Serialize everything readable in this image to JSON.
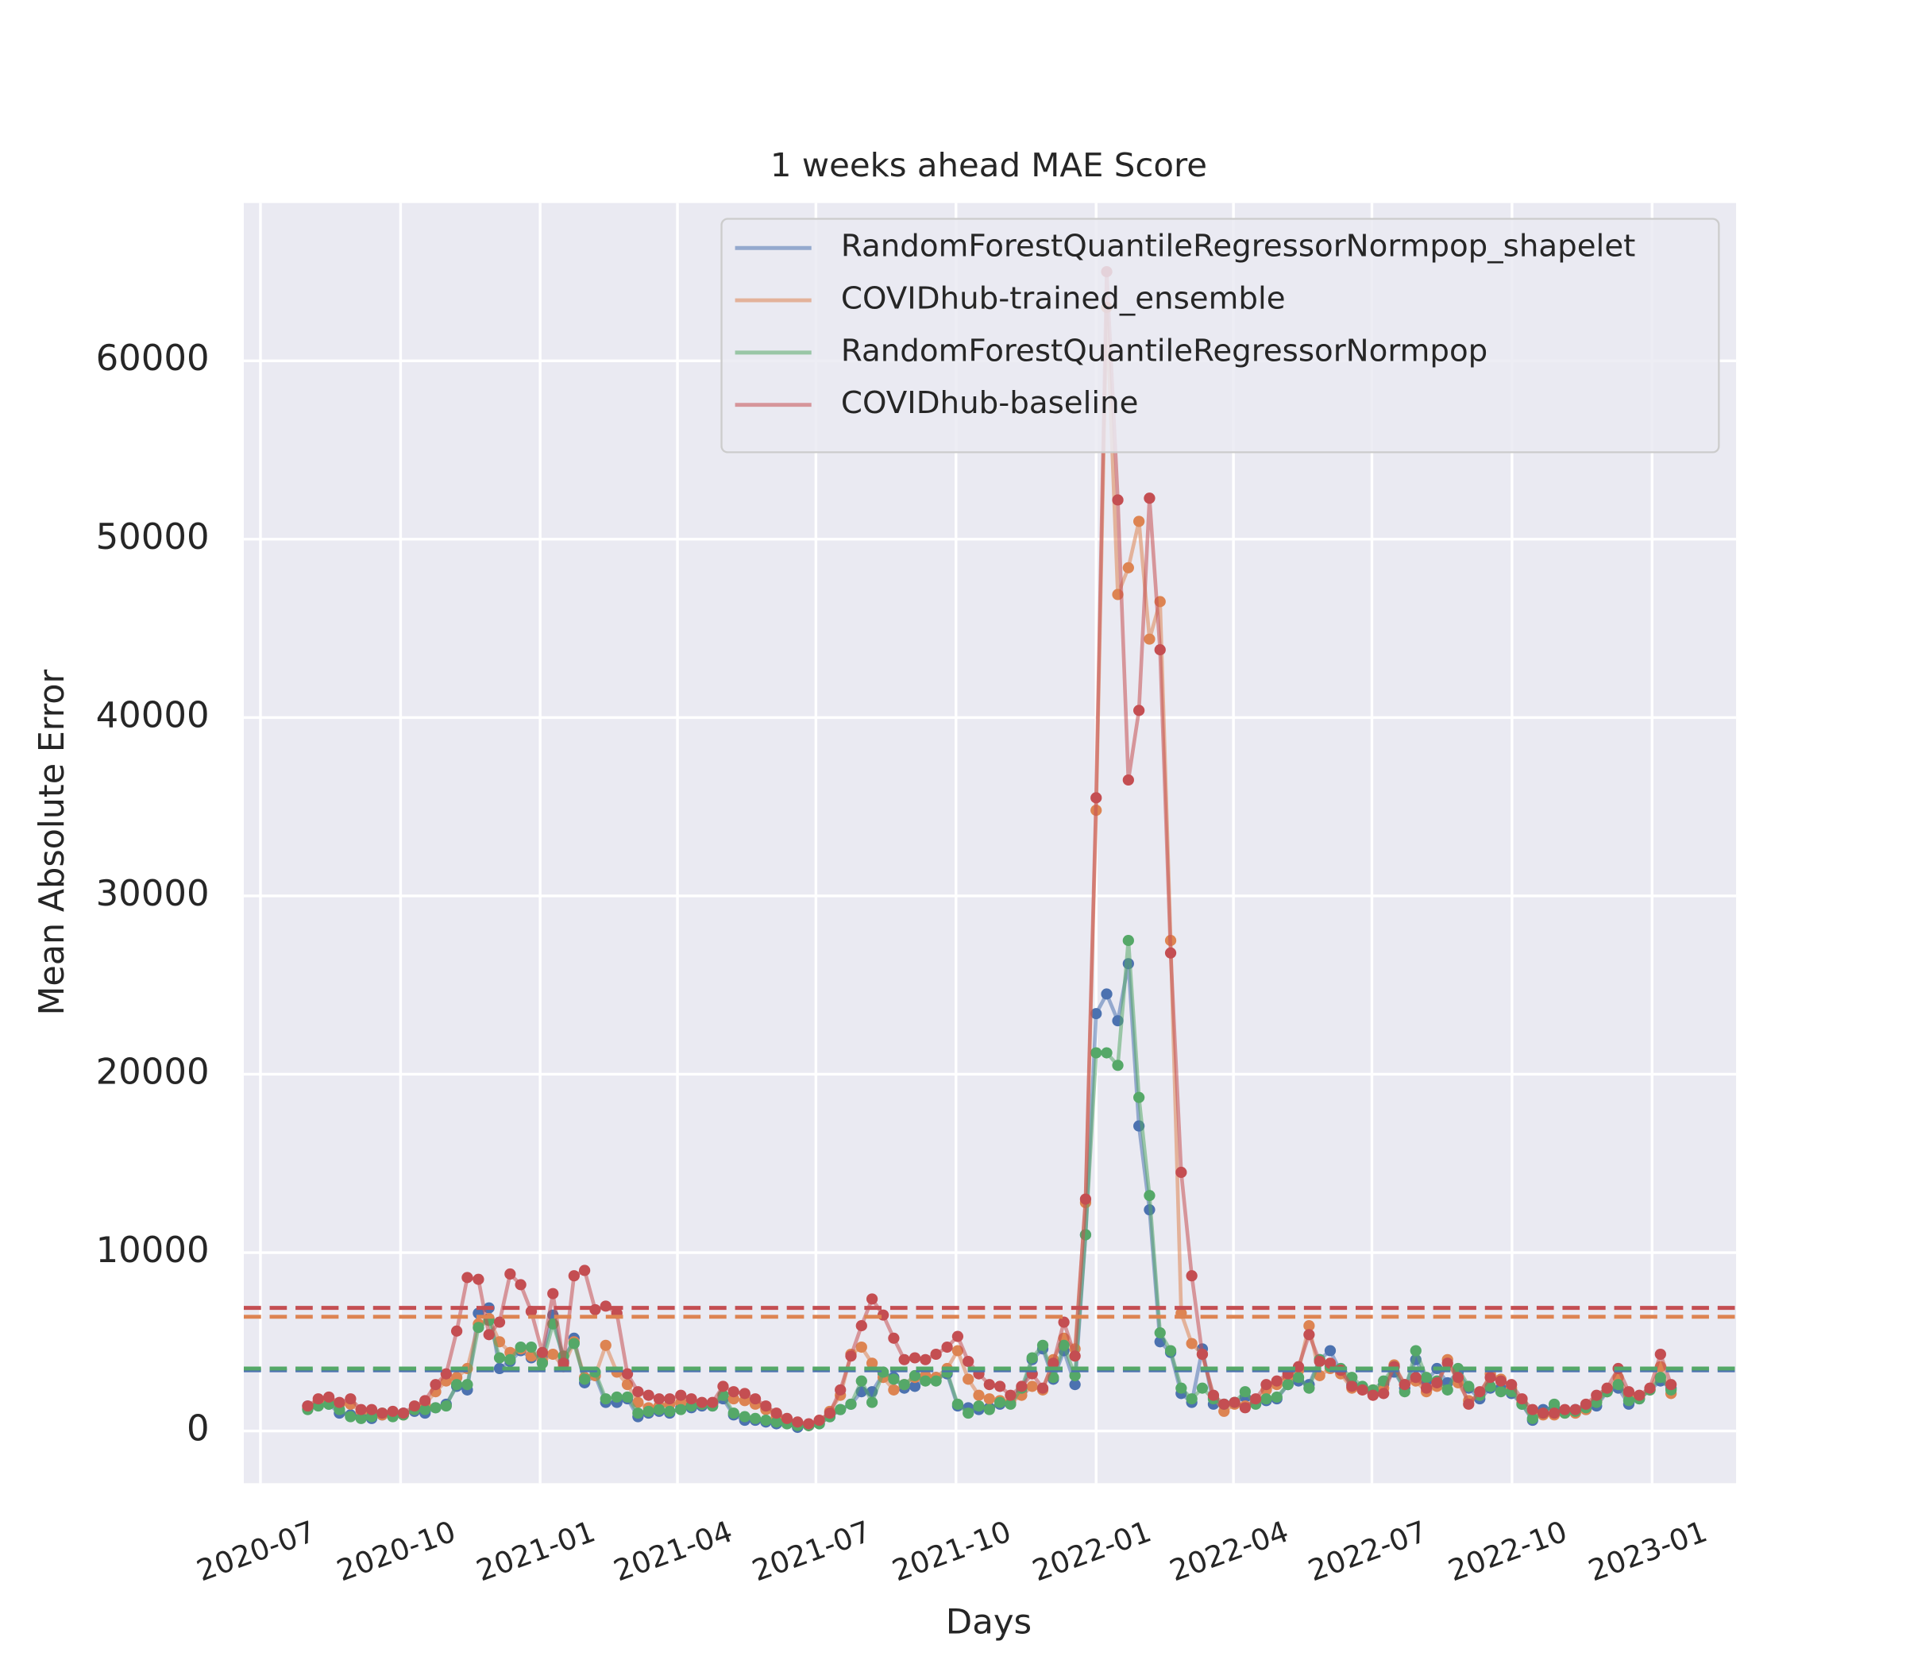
{
  "chart_data": {
    "type": "line",
    "title": "1 weeks ahead MAE Score",
    "xlabel": "Days",
    "ylabel": "Mean Absolute Error",
    "grid": true,
    "legend": "upper right",
    "xlim": [
      2020.467,
      2023.151
    ],
    "ylim": [
      -2930,
      68850
    ],
    "xticks": [
      {
        "value": 2020.497,
        "label": "2020-07"
      },
      {
        "value": 2020.749,
        "label": "2020-10"
      },
      {
        "value": 2021.0,
        "label": "2021-01"
      },
      {
        "value": 2021.247,
        "label": "2021-04"
      },
      {
        "value": 2021.496,
        "label": "2021-07"
      },
      {
        "value": 2021.748,
        "label": "2021-10"
      },
      {
        "value": 2022.0,
        "label": "2022-01"
      },
      {
        "value": 2022.247,
        "label": "2022-04"
      },
      {
        "value": 2022.496,
        "label": "2022-07"
      },
      {
        "value": 2022.748,
        "label": "2022-10"
      },
      {
        "value": 2023.0,
        "label": "2023-01"
      }
    ],
    "yticks": [
      0,
      10000,
      20000,
      30000,
      40000,
      50000,
      60000
    ],
    "x": [
      2020.582,
      2020.601,
      2020.62,
      2020.639,
      2020.659,
      2020.678,
      2020.697,
      2020.716,
      2020.735,
      2020.754,
      2020.774,
      2020.793,
      2020.812,
      2020.831,
      2020.85,
      2020.869,
      2020.889,
      2020.908,
      2020.927,
      2020.946,
      2020.965,
      2020.984,
      2021.004,
      2021.023,
      2021.042,
      2021.061,
      2021.08,
      2021.099,
      2021.118,
      2021.138,
      2021.157,
      2021.176,
      2021.195,
      2021.214,
      2021.233,
      2021.253,
      2021.272,
      2021.291,
      2021.31,
      2021.329,
      2021.348,
      2021.368,
      2021.387,
      2021.406,
      2021.425,
      2021.444,
      2021.463,
      2021.483,
      2021.502,
      2021.521,
      2021.54,
      2021.559,
      2021.578,
      2021.597,
      2021.617,
      2021.636,
      2021.655,
      2021.674,
      2021.693,
      2021.712,
      2021.732,
      2021.751,
      2021.77,
      2021.789,
      2021.808,
      2021.827,
      2021.846,
      2021.866,
      2021.885,
      2021.904,
      2021.923,
      2021.942,
      2021.962,
      2021.981,
      2022.0,
      2022.019,
      2022.039,
      2022.058,
      2022.077,
      2022.096,
      2022.115,
      2022.134,
      2022.153,
      2022.172,
      2022.191,
      2022.211,
      2022.23,
      2022.249,
      2022.268,
      2022.287,
      2022.306,
      2022.325,
      2022.345,
      2022.364,
      2022.383,
      2022.402,
      2022.421,
      2022.44,
      2022.46,
      2022.479,
      2022.498,
      2022.517,
      2022.536,
      2022.555,
      2022.575,
      2022.594,
      2022.613,
      2022.632,
      2022.651,
      2022.67,
      2022.69,
      2022.709,
      2022.728,
      2022.747,
      2022.766,
      2022.785,
      2022.804,
      2022.824,
      2022.843,
      2022.862,
      2022.881,
      2022.9,
      2022.919,
      2022.939,
      2022.958,
      2022.977,
      2022.996,
      2023.015,
      2023.034
    ],
    "series": [
      {
        "name": "RandomForestQuantileRegressorNormpop_shapelet",
        "color": "#4c72b0",
        "mean": 3400,
        "values": [
          1400,
          1500,
          1500,
          1000,
          900,
          800,
          700,
          900,
          900,
          1000,
          1100,
          1000,
          1300,
          1500,
          2500,
          2300,
          6600,
          6900,
          3500,
          3900,
          4500,
          4100,
          4200,
          6500,
          3900,
          5200,
          2700,
          3100,
          1600,
          1600,
          1800,
          800,
          1000,
          1100,
          1000,
          1300,
          1300,
          1400,
          1400,
          1800,
          900,
          600,
          600,
          500,
          400,
          400,
          200,
          300,
          400,
          800,
          1200,
          1500,
          2200,
          2200,
          3200,
          3000,
          2400,
          2500,
          2900,
          3000,
          3200,
          1400,
          1300,
          1200,
          1300,
          1500,
          1600,
          2200,
          4000,
          4600,
          2900,
          4500,
          2600,
          11000,
          23400,
          24500,
          23000,
          26200,
          17100,
          12400,
          5000,
          4400,
          2100,
          1600,
          4600,
          1500,
          1500,
          1600,
          1900,
          1600,
          1700,
          1800,
          2600,
          2800,
          2600,
          4000,
          4500,
          3300,
          2600,
          2400,
          2200,
          2600,
          3300,
          2400,
          4000,
          2800,
          3500,
          2700,
          3300,
          2400,
          1800,
          2400,
          2400,
          2100,
          1500,
          600,
          1200,
          1300,
          1100,
          1200,
          1200,
          1400,
          2200,
          2400,
          1500,
          1800,
          2300,
          2800,
          2400
        ]
      },
      {
        "name": "COVIDhub-trained_ensemble",
        "color": "#dd8452",
        "mean": 6400,
        "values": [
          1300,
          1600,
          1700,
          1500,
          1500,
          1100,
          1000,
          900,
          1000,
          900,
          1200,
          1500,
          2200,
          2800,
          3000,
          3500,
          6000,
          6300,
          5000,
          4400,
          4600,
          4200,
          3900,
          4300,
          3600,
          5000,
          3000,
          3100,
          4800,
          3300,
          2600,
          1600,
          1300,
          1400,
          1500,
          1600,
          1600,
          1500,
          1500,
          2000,
          1800,
          1700,
          1500,
          1200,
          800,
          600,
          400,
          300,
          500,
          1100,
          2000,
          4300,
          4700,
          3800,
          3000,
          2300,
          2600,
          3000,
          3100,
          3000,
          3500,
          4500,
          2900,
          2000,
          1800,
          1700,
          1600,
          2000,
          2500,
          2300,
          4000,
          5200,
          4600,
          12800,
          34800,
          63000,
          46900,
          48400,
          51000,
          44400,
          46500,
          27500,
          6600,
          4900,
          4300,
          1900,
          1100,
          1500,
          1400,
          1600,
          2300,
          2600,
          3000,
          3400,
          5900,
          3100,
          3500,
          3200,
          2400,
          2300,
          2300,
          2400,
          3700,
          2600,
          2800,
          2200,
          2500,
          4000,
          2700,
          1700,
          2000,
          3200,
          2900,
          2400,
          1600,
          1100,
          900,
          900,
          1000,
          1000,
          1200,
          1700,
          2200,
          3000,
          2000,
          1900,
          2300,
          3600,
          2100
        ]
      },
      {
        "name": "RandomForestQuantileRegressorNormpop",
        "color": "#55a868",
        "mean": 3500,
        "values": [
          1200,
          1400,
          1500,
          1200,
          800,
          700,
          800,
          1000,
          800,
          900,
          1200,
          1200,
          1300,
          1400,
          2600,
          2600,
          5800,
          6200,
          4100,
          4000,
          4700,
          4700,
          3800,
          6000,
          4200,
          4900,
          2900,
          3300,
          1800,
          1900,
          1900,
          1000,
          1100,
          1200,
          1100,
          1200,
          1400,
          1500,
          1400,
          2000,
          1000,
          800,
          700,
          600,
          500,
          400,
          300,
          300,
          400,
          800,
          1200,
          1500,
          2800,
          1600,
          3300,
          2900,
          2600,
          3100,
          2800,
          2800,
          3300,
          1500,
          1000,
          1400,
          1200,
          1600,
          1500,
          2400,
          4100,
          4800,
          3000,
          4800,
          3100,
          11000,
          21200,
          21200,
          20500,
          27500,
          18700,
          13200,
          5500,
          4500,
          2400,
          1800,
          2400,
          1800,
          1500,
          1600,
          2200,
          1500,
          1800,
          1900,
          2600,
          3000,
          2400,
          4000,
          3600,
          3500,
          3000,
          2500,
          2300,
          2800,
          3600,
          2200,
          4500,
          3000,
          2800,
          2300,
          3500,
          2500,
          2000,
          2500,
          2200,
          2200,
          1500,
          700,
          1000,
          1500,
          1000,
          1100,
          1300,
          1600,
          2200,
          2600,
          1700,
          1800,
          2300,
          3000,
          2300
        ]
      },
      {
        "name": "COVIDhub-baseline",
        "color": "#c44e52",
        "mean": 6900,
        "values": [
          1400,
          1800,
          1900,
          1600,
          1800,
          1200,
          1200,
          1000,
          1100,
          1000,
          1400,
          1700,
          2600,
          3200,
          5600,
          8600,
          8500,
          5400,
          6100,
          8800,
          8200,
          6700,
          4400,
          7700,
          3800,
          8700,
          9000,
          6800,
          7000,
          6600,
          3200,
          2200,
          2000,
          1800,
          1800,
          2000,
          1800,
          1600,
          1600,
          2500,
          2200,
          2100,
          1800,
          1400,
          1000,
          700,
          500,
          400,
          600,
          1000,
          2300,
          4200,
          5900,
          7400,
          6500,
          5200,
          4000,
          4100,
          4000,
          4300,
          4700,
          5300,
          3900,
          3200,
          2600,
          2500,
          2000,
          2500,
          3200,
          2400,
          3800,
          6100,
          4200,
          13000,
          35500,
          65000,
          52200,
          36500,
          40400,
          52300,
          43800,
          26800,
          14500,
          8700,
          4300,
          2000,
          1500,
          1600,
          1300,
          1800,
          2600,
          2800,
          3200,
          3600,
          5400,
          3900,
          3800,
          3400,
          2500,
          2300,
          2000,
          2100,
          3600,
          2600,
          3000,
          2400,
          2700,
          3800,
          3000,
          1500,
          2200,
          3000,
          2800,
          2600,
          1800,
          1200,
          1000,
          1000,
          1200,
          1200,
          1500,
          2000,
          2400,
          3500,
          2200,
          2000,
          2400,
          4300,
          2600
        ]
      }
    ]
  }
}
